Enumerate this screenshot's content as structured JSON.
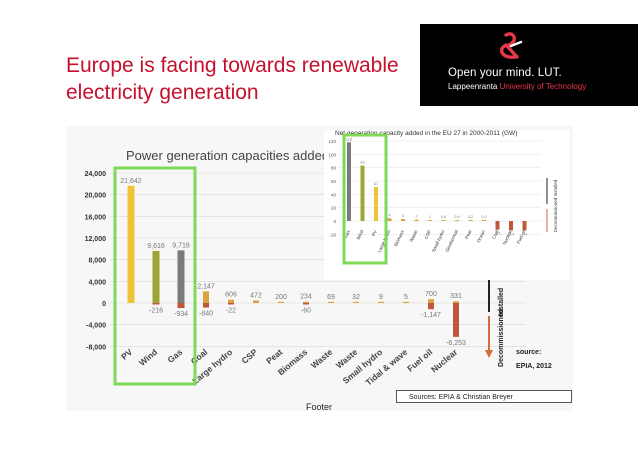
{
  "slide": {
    "title_line1": "Europe is facing towards renewable",
    "title_line2": "electricity generation",
    "footer": "Footer",
    "sources": "Sources: EPIA & Christian Breyer"
  },
  "logo": {
    "line1": "Open your mind. LUT.",
    "line2_city": "Lappeenranta",
    "line2_uni": "University of Technology",
    "accent": "#e8374a"
  },
  "chart_data": [
    {
      "type": "bar",
      "title": "Power generation capacities added",
      "categories": [
        "PV",
        "Wind",
        "Gas",
        "Coal",
        "Large hydro",
        "CSP",
        "Peat",
        "Biomass",
        "Waste",
        "Waste",
        "Small hydro",
        "Tidal & wave",
        "Fuel oil",
        "Nuclear"
      ],
      "series": [
        {
          "name": "Installed",
          "values": [
            21642,
            9616,
            9718,
            2147,
            606,
            472,
            200,
            234,
            69,
            32,
            9,
            5,
            700,
            331
          ]
        },
        {
          "name": "Decommissioned",
          "values": [
            0,
            -216,
            -934,
            -840,
            -22,
            0,
            0,
            -60,
            0,
            0,
            0,
            0,
            -1147,
            -6253
          ]
        }
      ],
      "value_labels": [
        "21,642",
        "9,616",
        "9,718",
        "2,147",
        "606",
        "472",
        "200",
        "234",
        "69",
        "32",
        "9",
        "5",
        "700",
        "331"
      ],
      "neg_labels": [
        "",
        "-216",
        "-934",
        "-840",
        "-22",
        "",
        "",
        "-60",
        "",
        "",
        "",
        "",
        "-1,147",
        "-6,253"
      ],
      "yticks": [
        24000,
        20000,
        16000,
        12000,
        8000,
        4000,
        0,
        -4000,
        -8000
      ],
      "ytick_labels": [
        "24,000",
        "20,000",
        "16,000",
        "12,000",
        "8,000",
        "4,000",
        "0",
        "-4,000",
        "-8,000"
      ],
      "ylim": [
        -8000,
        24000
      ],
      "side_label_top": "Installed",
      "side_label_bottom": "Decommissioned",
      "source_label": "source:",
      "source_value": "EPIA, 2012",
      "highlight": [
        "PV",
        "Wind",
        "Gas"
      ],
      "colors": {
        "pv": "#f0c23b",
        "wind": "#9ea532",
        "gas": "#7b7b7b",
        "installed": "#d9a43c",
        "decommissioned": "#c0573a",
        "highlight_box": "#7ed957",
        "arrow_up": "#222222",
        "arrow_down": "#d56a3a"
      }
    },
    {
      "type": "bar",
      "title": "Net generation capacity added in the EU 27 in 2000-2011 (GW)",
      "categories": [
        "Gas",
        "Wind",
        "PV",
        "Large hydro",
        "Biomass",
        "Waste",
        "CSP",
        "Small hydro",
        "Geothermal",
        "Peat",
        "Ocean",
        "Coal",
        "Nuclear",
        "Fuel oil"
      ],
      "values": [
        118,
        83,
        51,
        4,
        3,
        2,
        1,
        0.6,
        0.6,
        0.2,
        0,
        -13,
        -14,
        -14
      ],
      "value_labels": [
        "118",
        "83",
        "51",
        "4",
        "3",
        "2",
        "1",
        "0.6",
        "0.6",
        "0.2",
        "0.0",
        "-13",
        "-14",
        "-14"
      ],
      "yticks": [
        120,
        100,
        80,
        60,
        40,
        20,
        0,
        -20
      ],
      "ylim": [
        -20,
        120
      ],
      "side_label": "Decommissioned  Installed"
    }
  ]
}
